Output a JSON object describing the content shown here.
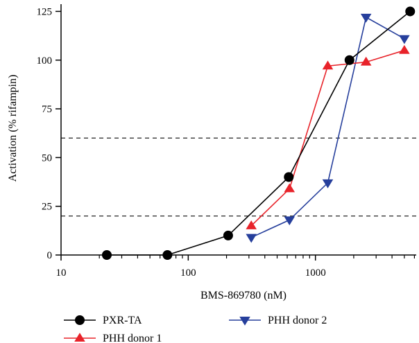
{
  "chart_data": {
    "type": "line",
    "xlabel": "BMS-869780 (nM)",
    "ylabel": "Activation (% rifampin)",
    "x_scale": "log",
    "xlim": [
      10,
      6200
    ],
    "ylim": [
      0,
      128
    ],
    "x_ticks": [
      10,
      100,
      1000
    ],
    "x_tick_labels": [
      "10",
      "100",
      "1000"
    ],
    "y_ticks": [
      0,
      25,
      50,
      75,
      100,
      125
    ],
    "y_tick_labels": [
      "0",
      "25",
      "50",
      "75",
      "100",
      "125"
    ],
    "grid": false,
    "reference_lines": [
      {
        "y": 60,
        "style": "dashed"
      },
      {
        "y": 20,
        "style": "dashed"
      }
    ],
    "legend_position": "bottom",
    "series": [
      {
        "name": "PXR-TA",
        "marker": "circle",
        "color": "#000000",
        "x": [
          22.9,
          68.6,
          206,
          617,
          1852,
          5556
        ],
        "y": [
          0,
          0,
          10,
          40,
          100,
          125
        ]
      },
      {
        "name": "PHH donor 1",
        "marker": "triangle-up",
        "color": "#e8232a",
        "x": [
          313,
          625,
          1250,
          2500,
          5000
        ],
        "y": [
          15,
          34,
          97,
          99,
          105
        ]
      },
      {
        "name": "PHH donor 2",
        "marker": "triangle-down",
        "color": "#263f9c",
        "x": [
          313,
          625,
          1250,
          2500,
          5000
        ],
        "y": [
          9,
          18,
          37,
          122,
          111
        ]
      }
    ]
  }
}
